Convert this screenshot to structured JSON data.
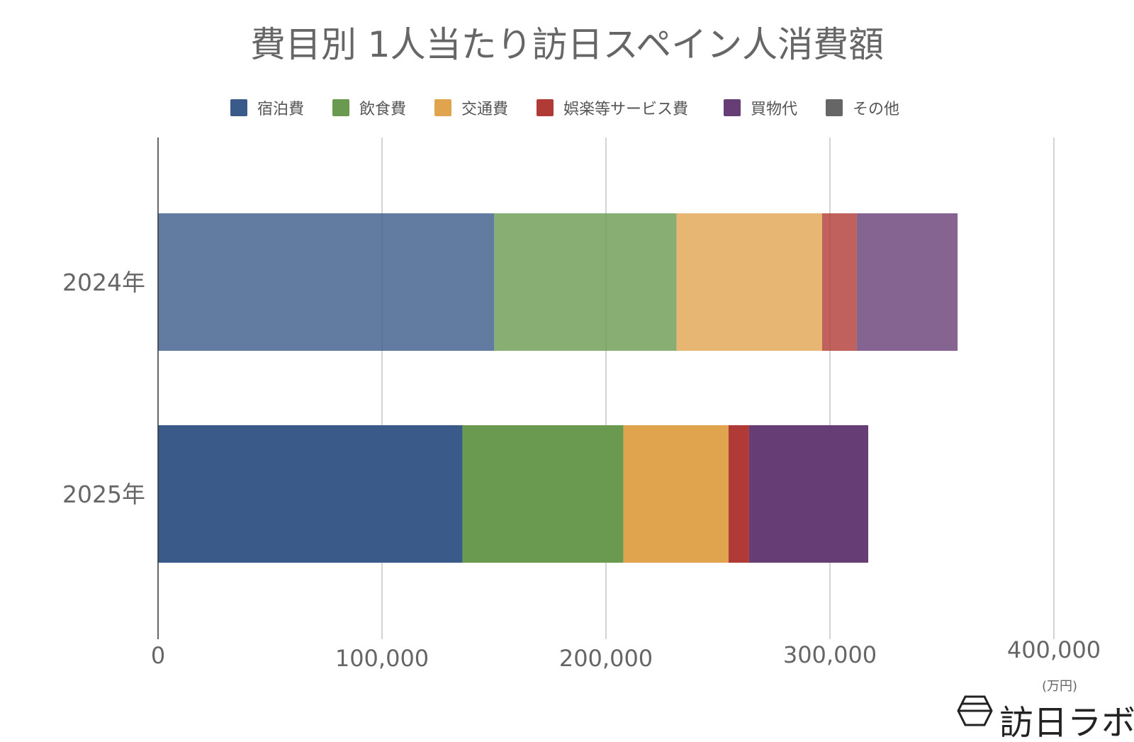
{
  "chart_data": {
    "type": "bar",
    "orientation": "horizontal",
    "stacked": true,
    "title": "費目別 1人当たり訪日スペイン人消費額",
    "categories": [
      "2024年",
      "2025年"
    ],
    "series": [
      {
        "name": "宿泊費",
        "color": "#3a5a8a",
        "values": [
          150100,
          135900
        ]
      },
      {
        "name": "飲食費",
        "color": "#6a9a50",
        "values": [
          81400,
          71900
        ]
      },
      {
        "name": "交通費",
        "color": "#e0a44f",
        "values": [
          65000,
          46900
        ]
      },
      {
        "name": "娯楽等サービス費",
        "color": "#b03a36",
        "values": [
          15500,
          9200
        ]
      },
      {
        "name": "買物代",
        "color": "#673d75",
        "values": [
          45000,
          53200
        ]
      },
      {
        "name": "その他",
        "color": "#666666",
        "values": [
          0,
          0
        ]
      }
    ],
    "xlim": [
      0,
      400000
    ],
    "xticks": [
      "0",
      "100,000",
      "200,000",
      "300,000",
      "400,000"
    ],
    "xunit": "(万円)",
    "grid": true,
    "legend": "top",
    "faded_category": "2024年"
  },
  "logo_text": "訪日ラボ"
}
